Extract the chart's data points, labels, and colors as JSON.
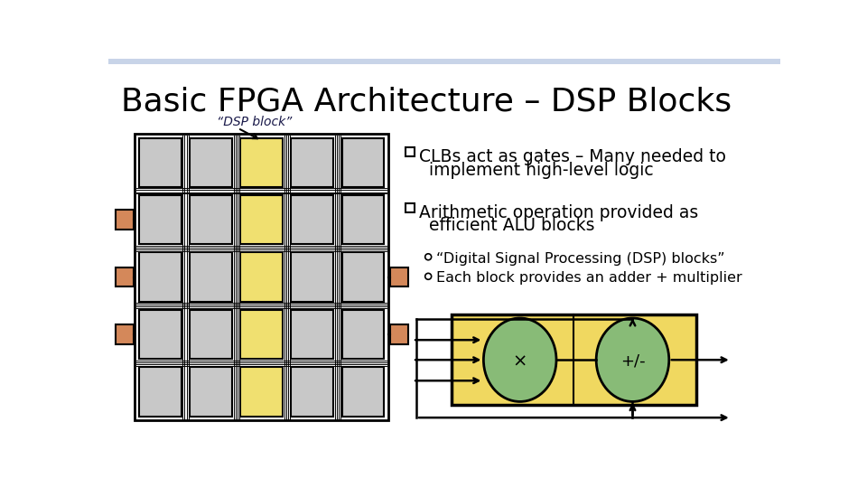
{
  "title": "Basic FPGA Architecture – DSP Blocks",
  "title_fontsize": 26,
  "title_fontweight": "normal",
  "bg_color": "#ffffff",
  "header_bar_color": "#c8d4e8",
  "clb_color": "#c8c8c8",
  "dsp_color": "#f0e070",
  "io_color": "#d4885a",
  "grid_rows": 5,
  "grid_cols": 5,
  "dsp_col": 2,
  "bullet1_line1": "CLBs act as gates – Many needed to",
  "bullet1_line2": "implement high-level logic",
  "bullet2_line1": "Arithmetic operation provided as",
  "bullet2_line2": "efficient ALU blocks",
  "sub1": "“Digital Signal Processing (DSP) blocks”",
  "sub2": "Each block provides an adder + multiplier",
  "dsp_label": "“DSP block”",
  "mult_label": "×",
  "adder_label": "+/-",
  "green_color": "#88bb77",
  "dsp_box_color": "#f0d860"
}
